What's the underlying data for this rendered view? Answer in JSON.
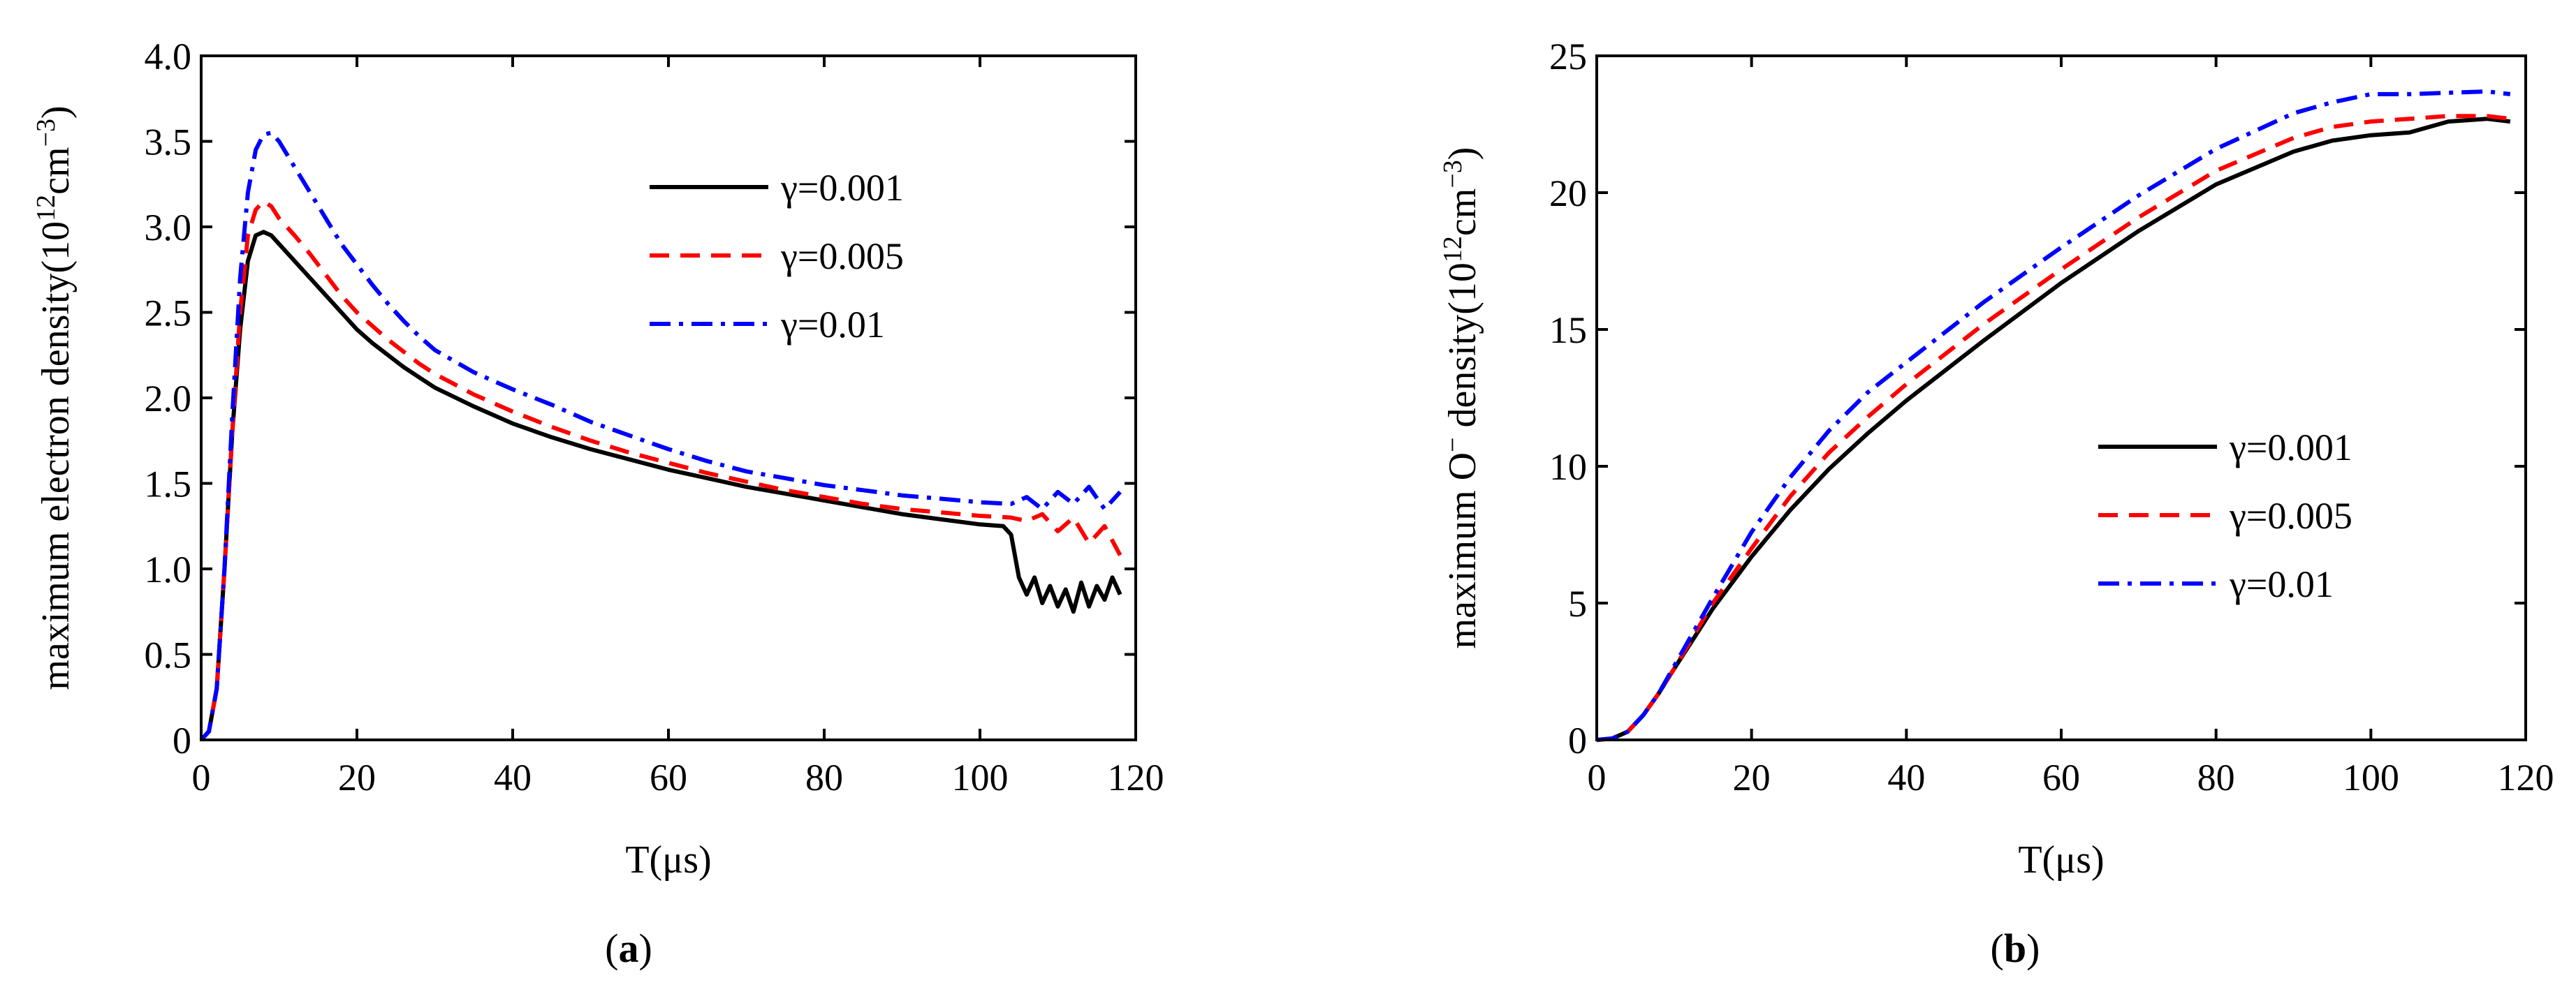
{
  "chart_data": [
    {
      "type": "line",
      "panel_label": "a",
      "xlabel": "T(μs)",
      "ylabel_main": "maximum electron density(10",
      "ylabel_exp1": "12",
      "ylabel_mid": "cm",
      "ylabel_exp2": "−3",
      "ylabel_end": ")",
      "xlim": [
        0,
        120
      ],
      "ylim": [
        0,
        4.0
      ],
      "xticks": [
        0,
        20,
        40,
        60,
        80,
        100,
        120
      ],
      "yticks": [
        0,
        0.5,
        1.0,
        1.5,
        2.0,
        2.5,
        3.0,
        3.5,
        4.0
      ],
      "ytick_labels": [
        "0",
        "0.5",
        "1.0",
        "1.5",
        "2.0",
        "2.5",
        "3.0",
        "3.5",
        "4.0"
      ],
      "legend_position": "top-right",
      "series": [
        {
          "name": "γ=0.001",
          "color": "#000000",
          "dash": "solid",
          "x": [
            0,
            1,
            2,
            3,
            4,
            5,
            6,
            7,
            8,
            9,
            10,
            12,
            14,
            16,
            18,
            20,
            22,
            24,
            26,
            28,
            30,
            35,
            40,
            45,
            50,
            55,
            60,
            65,
            70,
            75,
            80,
            85,
            90,
            95,
            100,
            103,
            104,
            105,
            106,
            107,
            108,
            109,
            110,
            111,
            112,
            113,
            114,
            115,
            116,
            117,
            118
          ],
          "y": [
            0,
            0.05,
            0.3,
            1.0,
            1.8,
            2.4,
            2.8,
            2.95,
            2.97,
            2.95,
            2.9,
            2.8,
            2.7,
            2.6,
            2.5,
            2.4,
            2.32,
            2.25,
            2.18,
            2.12,
            2.06,
            1.95,
            1.85,
            1.77,
            1.7,
            1.64,
            1.58,
            1.53,
            1.48,
            1.44,
            1.4,
            1.36,
            1.32,
            1.29,
            1.26,
            1.25,
            1.2,
            0.95,
            0.85,
            0.95,
            0.8,
            0.9,
            0.78,
            0.88,
            0.75,
            0.92,
            0.78,
            0.9,
            0.82,
            0.95,
            0.85
          ]
        },
        {
          "name": "γ=0.005",
          "color": "#ff0000",
          "dash": "dashed",
          "x": [
            0,
            1,
            2,
            3,
            4,
            5,
            6,
            7,
            8,
            9,
            10,
            12,
            14,
            16,
            18,
            20,
            22,
            24,
            26,
            28,
            30,
            35,
            40,
            45,
            50,
            55,
            60,
            65,
            70,
            75,
            80,
            85,
            90,
            95,
            100,
            104,
            106,
            108,
            110,
            112,
            114,
            116,
            118
          ],
          "y": [
            0,
            0.05,
            0.3,
            1.0,
            1.8,
            2.5,
            2.95,
            3.1,
            3.15,
            3.12,
            3.05,
            2.95,
            2.84,
            2.72,
            2.6,
            2.5,
            2.42,
            2.34,
            2.27,
            2.2,
            2.14,
            2.02,
            1.92,
            1.83,
            1.75,
            1.68,
            1.62,
            1.56,
            1.51,
            1.46,
            1.42,
            1.38,
            1.35,
            1.33,
            1.31,
            1.3,
            1.28,
            1.32,
            1.22,
            1.3,
            1.15,
            1.25,
            1.08
          ]
        },
        {
          "name": "γ=0.01",
          "color": "#0000ff",
          "dash": "dashdot",
          "x": [
            0,
            1,
            2,
            3,
            4,
            5,
            6,
            7,
            8,
            9,
            10,
            12,
            14,
            16,
            18,
            20,
            22,
            24,
            26,
            28,
            30,
            35,
            40,
            45,
            50,
            55,
            60,
            65,
            70,
            75,
            80,
            85,
            90,
            95,
            100,
            104,
            106,
            108,
            110,
            112,
            114,
            116,
            118
          ],
          "y": [
            0,
            0.05,
            0.3,
            1.0,
            1.9,
            2.7,
            3.2,
            3.45,
            3.54,
            3.55,
            3.5,
            3.35,
            3.2,
            3.05,
            2.9,
            2.78,
            2.66,
            2.55,
            2.45,
            2.36,
            2.28,
            2.15,
            2.05,
            1.96,
            1.86,
            1.78,
            1.7,
            1.63,
            1.57,
            1.53,
            1.49,
            1.46,
            1.43,
            1.41,
            1.39,
            1.38,
            1.42,
            1.35,
            1.45,
            1.38,
            1.48,
            1.35,
            1.45
          ]
        }
      ]
    },
    {
      "type": "line",
      "panel_label": "b",
      "xlabel": "T(μs)",
      "ylabel_main": "maximum O",
      "ylabel_sup": "−",
      "ylabel_mid": " density(10",
      "ylabel_exp1": "12",
      "ylabel_mid2": "cm",
      "ylabel_exp2": "−3",
      "ylabel_end": ")",
      "xlim": [
        0,
        120
      ],
      "ylim": [
        0,
        25
      ],
      "xticks": [
        0,
        20,
        40,
        60,
        80,
        100,
        120
      ],
      "yticks": [
        0,
        5,
        10,
        15,
        20,
        25
      ],
      "ytick_labels": [
        "0",
        "5",
        "10",
        "15",
        "20",
        "25"
      ],
      "legend_position": "center-right",
      "series": [
        {
          "name": "γ=0.001",
          "color": "#000000",
          "dash": "solid",
          "x": [
            0,
            2,
            4,
            6,
            8,
            10,
            15,
            20,
            25,
            30,
            35,
            40,
            50,
            60,
            70,
            80,
            90,
            95,
            100,
            105,
            110,
            115,
            118
          ],
          "y": [
            0,
            0.05,
            0.3,
            0.9,
            1.7,
            2.6,
            4.8,
            6.7,
            8.4,
            9.9,
            11.2,
            12.4,
            14.6,
            16.7,
            18.6,
            20.3,
            21.5,
            21.9,
            22.1,
            22.2,
            22.6,
            22.7,
            22.6
          ]
        },
        {
          "name": "γ=0.005",
          "color": "#ff0000",
          "dash": "dashed",
          "x": [
            0,
            2,
            4,
            6,
            8,
            10,
            15,
            20,
            25,
            30,
            35,
            40,
            50,
            60,
            70,
            80,
            90,
            95,
            100,
            105,
            110,
            115,
            118
          ],
          "y": [
            0,
            0.05,
            0.3,
            0.9,
            1.7,
            2.6,
            5.0,
            7.0,
            8.9,
            10.5,
            11.8,
            13.0,
            15.2,
            17.2,
            19.1,
            20.8,
            22.0,
            22.4,
            22.6,
            22.7,
            22.8,
            22.8,
            22.7
          ]
        },
        {
          "name": "γ=0.01",
          "color": "#0000ff",
          "dash": "dashdot",
          "x": [
            0,
            2,
            4,
            6,
            8,
            10,
            15,
            20,
            25,
            30,
            35,
            40,
            50,
            60,
            70,
            80,
            90,
            95,
            100,
            105,
            110,
            115,
            118
          ],
          "y": [
            0,
            0.05,
            0.3,
            0.9,
            1.7,
            2.7,
            5.2,
            7.6,
            9.6,
            11.3,
            12.7,
            13.8,
            16.0,
            18.0,
            19.9,
            21.6,
            22.9,
            23.3,
            23.6,
            23.6,
            23.65,
            23.7,
            23.6
          ]
        }
      ]
    }
  ]
}
